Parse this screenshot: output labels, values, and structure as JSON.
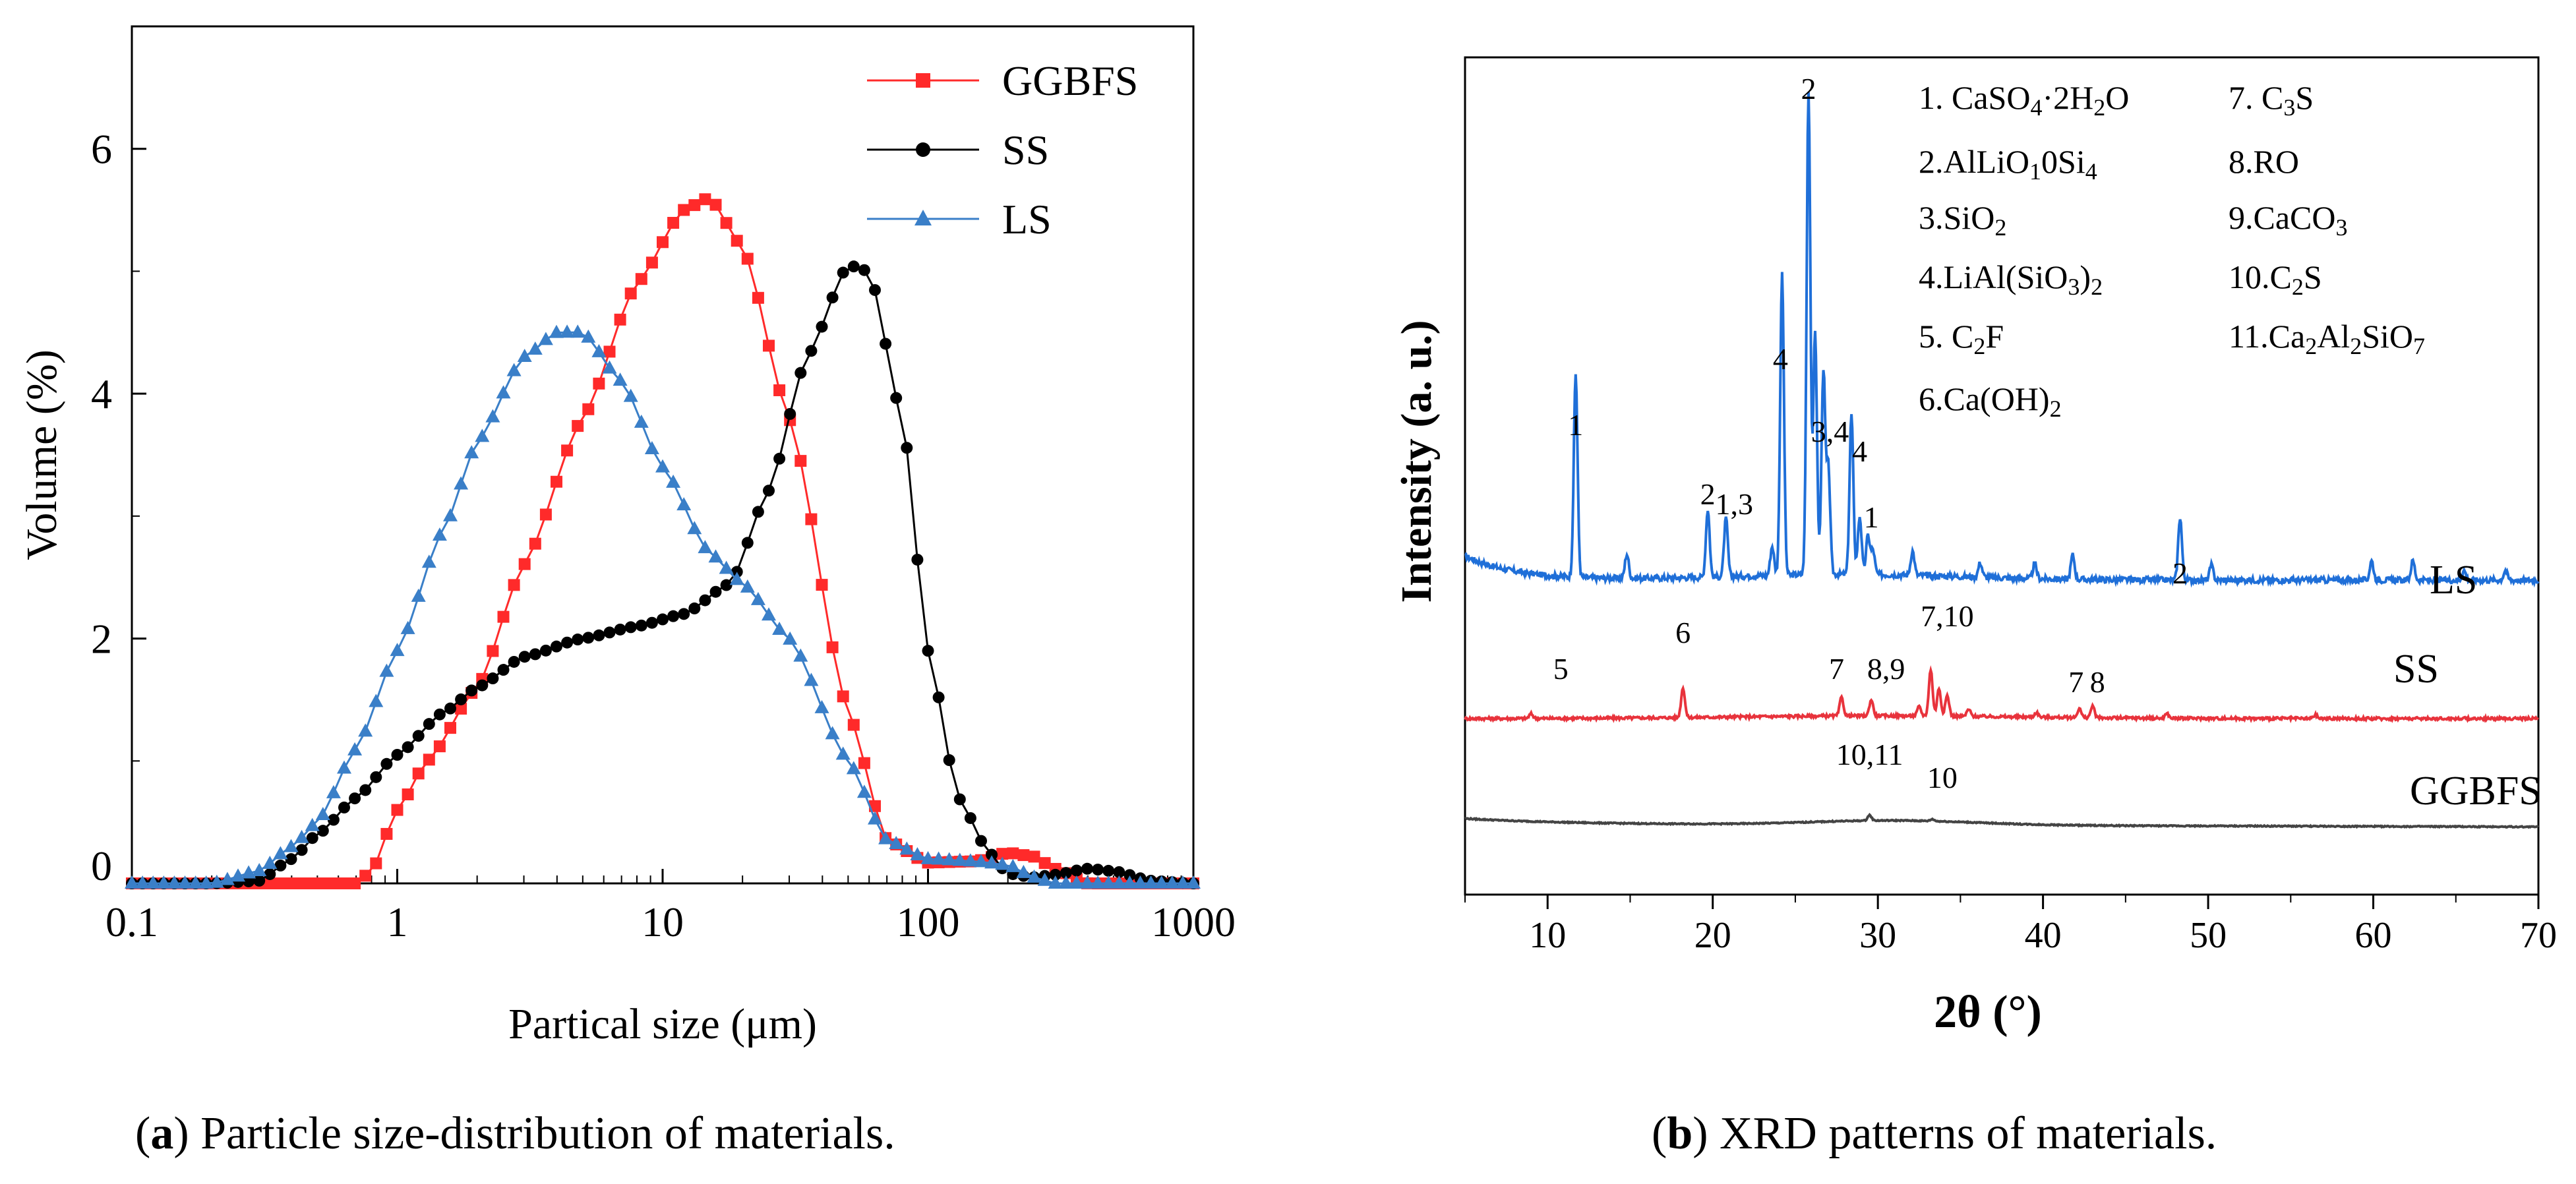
{
  "chart_data": [
    {
      "type": "line",
      "panel": "a",
      "caption": {
        "letter": "a",
        "text": ") Particle size-distribution of materials.",
        "open": "("
      },
      "xlabel": "Partical size (μm)",
      "ylabel": "Volume (%)",
      "xscale": "log",
      "xlim": [
        0.1,
        1000
      ],
      "ylim": [
        0,
        7
      ],
      "xticks": [
        0.1,
        1,
        10,
        100,
        1000
      ],
      "xtick_labels": [
        "0.1",
        "1",
        "10",
        "100",
        "1000"
      ],
      "yticks": [
        0,
        2,
        4,
        6
      ],
      "ytick_labels": [
        "0",
        "2",
        "4",
        "6"
      ],
      "legend": {
        "position": "top-right",
        "entries": [
          "GGBFS",
          "SS",
          "LS"
        ]
      },
      "series": [
        {
          "name": "GGBFS",
          "color": "#ff2a2a",
          "marker": "square",
          "x": [
            0.1,
            0.3,
            0.5,
            0.7,
            0.8,
            1,
            1.3,
            2,
            3,
            5,
            8,
            12,
            15,
            20,
            30,
            50,
            70,
            100,
            150,
            200,
            250,
            300,
            400
          ],
          "y": [
            0,
            0,
            0,
            0,
            0.1,
            0.6,
            1.0,
            1.6,
            2.6,
            3.8,
            4.9,
            5.5,
            5.6,
            5.2,
            3.8,
            1.4,
            0.35,
            0.17,
            0.18,
            0.25,
            0.22,
            0.12,
            0
          ]
        },
        {
          "name": "SS",
          "color": "#000000",
          "marker": "circle",
          "x": [
            0.1,
            0.2,
            0.3,
            0.4,
            0.5,
            0.7,
            1,
            1.5,
            2,
            3,
            5,
            8,
            12,
            18,
            25,
            35,
            50,
            60,
            80,
            100,
            130,
            170,
            200,
            250,
            300,
            400,
            500,
            700,
            1000
          ],
          "y": [
            0,
            0,
            0.02,
            0.2,
            0.4,
            0.7,
            1.05,
            1.4,
            1.6,
            1.85,
            2.0,
            2.1,
            2.2,
            2.45,
            3.2,
            4.3,
            5.05,
            5.0,
            3.8,
            1.9,
            0.7,
            0.25,
            0.08,
            0.05,
            0.07,
            0.12,
            0.1,
            0.02,
            0
          ]
        },
        {
          "name": "LS",
          "color": "#3a7fc8",
          "marker": "triangle",
          "x": [
            0.1,
            0.2,
            0.3,
            0.4,
            0.5,
            0.7,
            1,
            1.5,
            2,
            3,
            4,
            5,
            7,
            10,
            15,
            20,
            30,
            50,
            70,
            100,
            150,
            200,
            250,
            300
          ],
          "y": [
            0,
            0,
            0.1,
            0.3,
            0.5,
            1.1,
            1.9,
            2.9,
            3.6,
            4.3,
            4.5,
            4.5,
            4.1,
            3.4,
            2.7,
            2.45,
            2.0,
            1.0,
            0.35,
            0.2,
            0.18,
            0.15,
            0.05,
            0
          ]
        }
      ]
    },
    {
      "type": "line",
      "panel": "b",
      "caption": {
        "letter": "b",
        "text": ") XRD patterns of materials.",
        "open": "("
      },
      "xlabel": "2θ (°)",
      "ylabel": "Intensity (a. u.)",
      "xlim": [
        5,
        70
      ],
      "xticks": [
        10,
        20,
        30,
        40,
        50,
        60,
        70
      ],
      "xtick_labels": [
        "10",
        "20",
        "30",
        "40",
        "50",
        "60",
        "70"
      ],
      "series": [
        {
          "name": "LS",
          "label": "LS",
          "color": "#1f6fd8",
          "baseline": 0.62,
          "peaks": [
            [
              11.7,
              0.42
            ],
            [
              14.8,
              0.05
            ],
            [
              19.7,
              0.14
            ],
            [
              20.8,
              0.12
            ],
            [
              23.6,
              0.06
            ],
            [
              24.2,
              0.62
            ],
            [
              25.8,
              1.0
            ],
            [
              26.2,
              0.5
            ],
            [
              26.7,
              0.42
            ],
            [
              27.0,
              0.22
            ],
            [
              28.4,
              0.33
            ],
            [
              28.9,
              0.12
            ],
            [
              29.4,
              0.08
            ],
            [
              29.7,
              0.05
            ],
            [
              32.1,
              0.05
            ],
            [
              36.2,
              0.03
            ],
            [
              39.5,
              0.03
            ],
            [
              41.8,
              0.05
            ],
            [
              48.3,
              0.13
            ],
            [
              50.2,
              0.03
            ],
            [
              59.9,
              0.04
            ],
            [
              62.4,
              0.04
            ],
            [
              65.5,
              0.02
            ],
            [
              68.0,
              0.02
            ]
          ]
        },
        {
          "name": "SS",
          "label": "SS",
          "color": "#e8333c",
          "baseline": 0.31,
          "peaks": [
            [
              9.0,
              0.02
            ],
            [
              18.2,
              0.13
            ],
            [
              27.8,
              0.08
            ],
            [
              29.6,
              0.07
            ],
            [
              32.5,
              0.04
            ],
            [
              33.2,
              0.2
            ],
            [
              33.7,
              0.12
            ],
            [
              34.2,
              0.09
            ],
            [
              35.5,
              0.03
            ],
            [
              39.6,
              0.02
            ],
            [
              42.2,
              0.04
            ],
            [
              43.0,
              0.05
            ],
            [
              47.5,
              0.02
            ],
            [
              56.5,
              0.015
            ]
          ]
        },
        {
          "name": "GGBFS",
          "label": "GGBFS",
          "color": "#444444",
          "baseline": 0.12,
          "peaks": [
            [
              29.5,
              0.06
            ],
            [
              33.3,
              0.02
            ]
          ]
        }
      ],
      "peak_labels": [
        {
          "text": "2",
          "x": 25.8
        },
        {
          "text": "4",
          "x": 24.1
        },
        {
          "text": "3,4",
          "x": 27.1
        },
        {
          "text": "4",
          "x": 28.9
        },
        {
          "text": "1",
          "x": 11.7
        },
        {
          "text": "2",
          "x": 19.7
        },
        {
          "text": "1,3",
          "x": 21.3
        },
        {
          "text": "1",
          "x": 29.6
        },
        {
          "text": "2",
          "x": 48.3
        },
        {
          "text": "5",
          "x": 10.8
        },
        {
          "text": "6",
          "x": 18.2
        },
        {
          "text": "7",
          "x": 27.5
        },
        {
          "text": "8,9",
          "x": 30.5
        },
        {
          "text": "7,10",
          "x": 34.2
        },
        {
          "text": "7",
          "x": 42.0
        },
        {
          "text": "8",
          "x": 43.3
        },
        {
          "text": "10,11",
          "x": 29.5
        },
        {
          "text": "10",
          "x": 33.9
        }
      ],
      "legend": {
        "col1": [
          "1. CaSO4·2H2O",
          "2.AlLiO10Si4",
          "3.SiO2",
          "4.LiAl(SiO3)2",
          "5. C2F",
          "6.Ca(OH)2"
        ],
        "col2": [
          "7. C3S",
          "8.RO",
          "9.CaCO3",
          "10.C2S",
          "11.Ca2Al2SiO7"
        ]
      }
    }
  ]
}
